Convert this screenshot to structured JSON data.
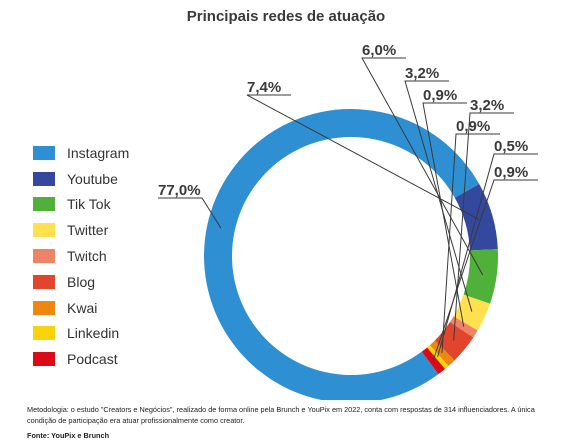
{
  "chart_data": {
    "type": "pie",
    "style": "donut",
    "title": "Principais redes de atuação",
    "legend_position": "left",
    "slices": [
      {
        "name": "Instagram",
        "value": 77.0,
        "label": "77,0%",
        "color": "#2e8fd3"
      },
      {
        "name": "Youtube",
        "value": 7.4,
        "label": "7,4%",
        "color": "#34499d"
      },
      {
        "name": "Tik Tok",
        "value": 6.0,
        "label": "6,0%",
        "color": "#4fb03a"
      },
      {
        "name": "Twitter",
        "value": 3.2,
        "label": "3,2%",
        "color": "#ffe04f"
      },
      {
        "name": "Twitch",
        "value": 0.9,
        "label": "0,9%",
        "color": "#ee8466"
      },
      {
        "name": "Blog",
        "value": 3.2,
        "label": "3,2%",
        "color": "#e2452e"
      },
      {
        "name": "Kwai",
        "value": 0.9,
        "label": "0,9%",
        "color": "#ed8710"
      },
      {
        "name": "Linkedin",
        "value": 0.5,
        "label": "0,5%",
        "color": "#f9d40b"
      },
      {
        "name": "Podcast",
        "value": 0.9,
        "label": "0,9%",
        "color": "#dc0a17"
      }
    ]
  },
  "note": "Metodologia: o estudo \"Creators e Negócios\", realizado de forma online pela Brunch e YouPix em 2022, conta com respostas de 314 influenciadores. A única condição de participação era atuar profissionalmente como creator.",
  "source": "Fonte: YouPix e Brunch"
}
